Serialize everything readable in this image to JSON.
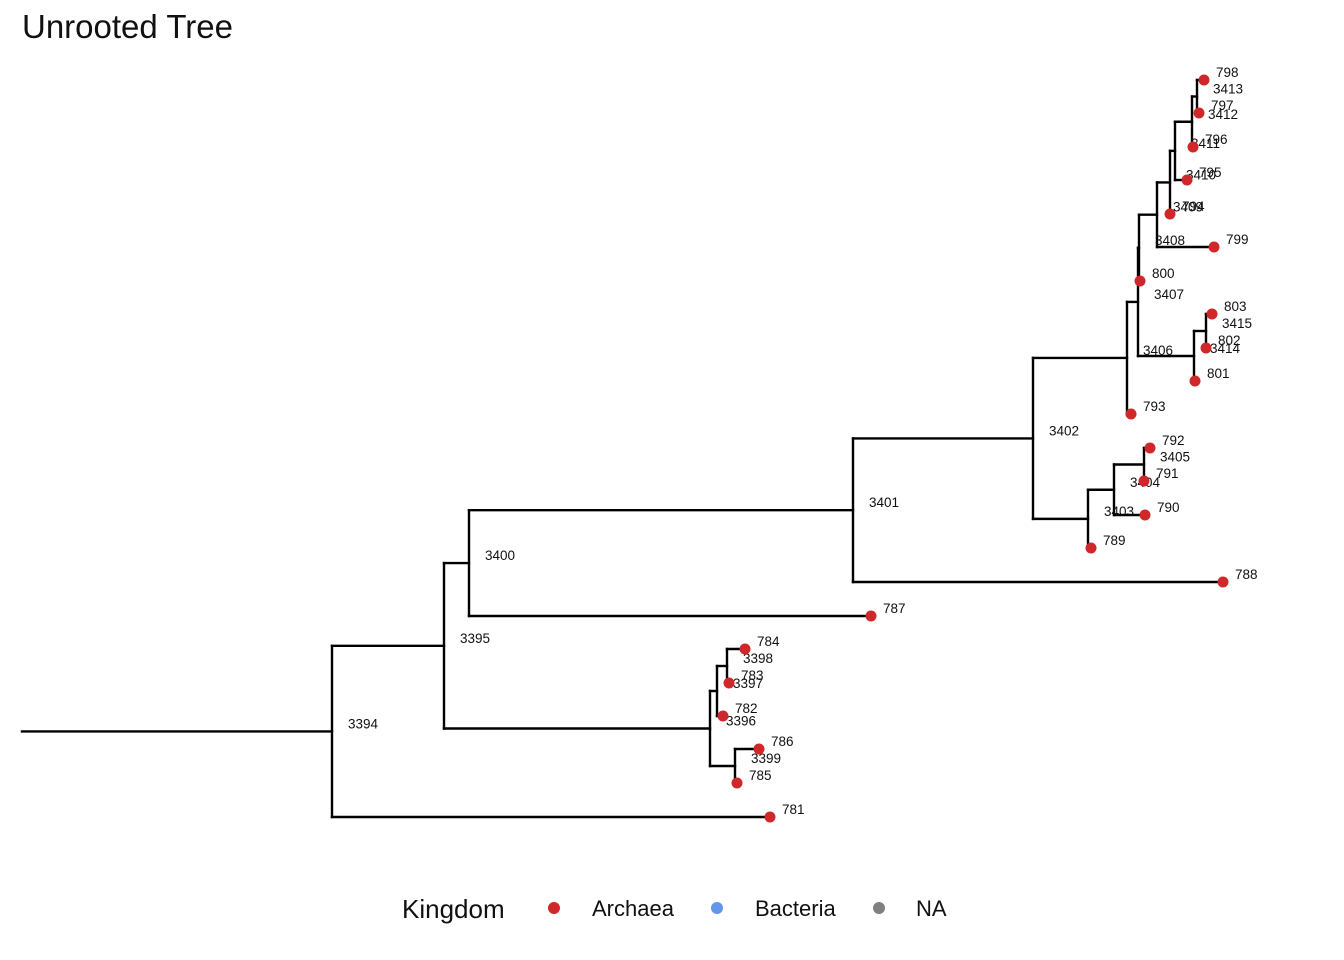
{
  "title": "Unrooted Tree",
  "colors": {
    "Archaea": "#d0282a",
    "Bacteria": "#6495ed",
    "NA": "#808080",
    "edge": "#000000"
  },
  "legend": {
    "title": "Kingdom",
    "items": [
      {
        "label": "Archaea",
        "color": "#d0282a"
      },
      {
        "label": "Bacteria",
        "color": "#6495ed"
      },
      {
        "label": "NA",
        "color": "#808080"
      }
    ]
  },
  "tree": {
    "label": "3394",
    "children": [
      {
        "label": "3395",
        "children": [
          {
            "label": "3400",
            "children": [
              {
                "label": "3401",
                "children": [
                  {
                    "label": "3402",
                    "children": [
                      {
                        "label": "3406",
                        "children": [
                          {
                            "label": "3407",
                            "children": [
                              {
                                "label": "3408",
                                "children": [
                                  {
                                    "label": "3409",
                                    "children": [
                                      {
                                        "label": "3410",
                                        "children": [
                                          {
                                            "label": "3411",
                                            "children": [
                                              {
                                                "label": "3412",
                                                "children": [
                                                  {
                                                    "label": "3413",
                                                    "children": [
                                                      {
                                                        "label": "798",
                                                        "kingdom": "Archaea"
                                                      },
                                                      {
                                                        "label": "797",
                                                        "kingdom": "Archaea"
                                                      }
                                                    ]
                                                  },
                                                  {
                                                    "label": "796",
                                                    "kingdom": "Archaea"
                                                  }
                                                ]
                                              },
                                              {
                                                "label": "795",
                                                "kingdom": "Archaea"
                                              }
                                            ]
                                          },
                                          {
                                            "label": "794",
                                            "kingdom": "Archaea"
                                          }
                                        ]
                                      },
                                      {
                                        "label": "799",
                                        "kingdom": "Archaea"
                                      }
                                    ]
                                  },
                                  {
                                    "label": "800",
                                    "kingdom": "Archaea"
                                  }
                                ]
                              },
                              {
                                "label": "3414",
                                "children": [
                                  {
                                    "label": "3415",
                                    "children": [
                                      {
                                        "label": "803",
                                        "kingdom": "Archaea"
                                      },
                                      {
                                        "label": "802",
                                        "kingdom": "Archaea"
                                      }
                                    ]
                                  },
                                  {
                                    "label": "801",
                                    "kingdom": "Archaea"
                                  }
                                ]
                              }
                            ]
                          },
                          {
                            "label": "793",
                            "kingdom": "Archaea"
                          }
                        ]
                      },
                      {
                        "label": "3403",
                        "children": [
                          {
                            "label": "3404",
                            "children": [
                              {
                                "label": "3405",
                                "children": [
                                  {
                                    "label": "792",
                                    "kingdom": "Archaea"
                                  },
                                  {
                                    "label": "791",
                                    "kingdom": "Archaea"
                                  }
                                ]
                              },
                              {
                                "label": "790",
                                "kingdom": "Archaea"
                              }
                            ]
                          },
                          {
                            "label": "789",
                            "kingdom": "Archaea"
                          }
                        ]
                      }
                    ]
                  },
                  {
                    "label": "788",
                    "kingdom": "Archaea"
                  }
                ]
              },
              {
                "label": "787",
                "kingdom": "Archaea"
              }
            ]
          },
          {
            "label": "3396",
            "children": [
              {
                "label": "3397",
                "children": [
                  {
                    "label": "3398",
                    "children": [
                      {
                        "label": "784",
                        "kingdom": "Archaea"
                      },
                      {
                        "label": "783",
                        "kingdom": "Archaea"
                      }
                    ]
                  },
                  {
                    "label": "782",
                    "kingdom": "Archaea"
                  }
                ]
              },
              {
                "label": "3399",
                "children": [
                  {
                    "label": "786",
                    "kingdom": "Archaea"
                  },
                  {
                    "label": "785",
                    "kingdom": "Archaea"
                  }
                ]
              }
            ]
          }
        ]
      },
      {
        "label": "781",
        "kingdom": "Archaea"
      }
    ]
  }
}
